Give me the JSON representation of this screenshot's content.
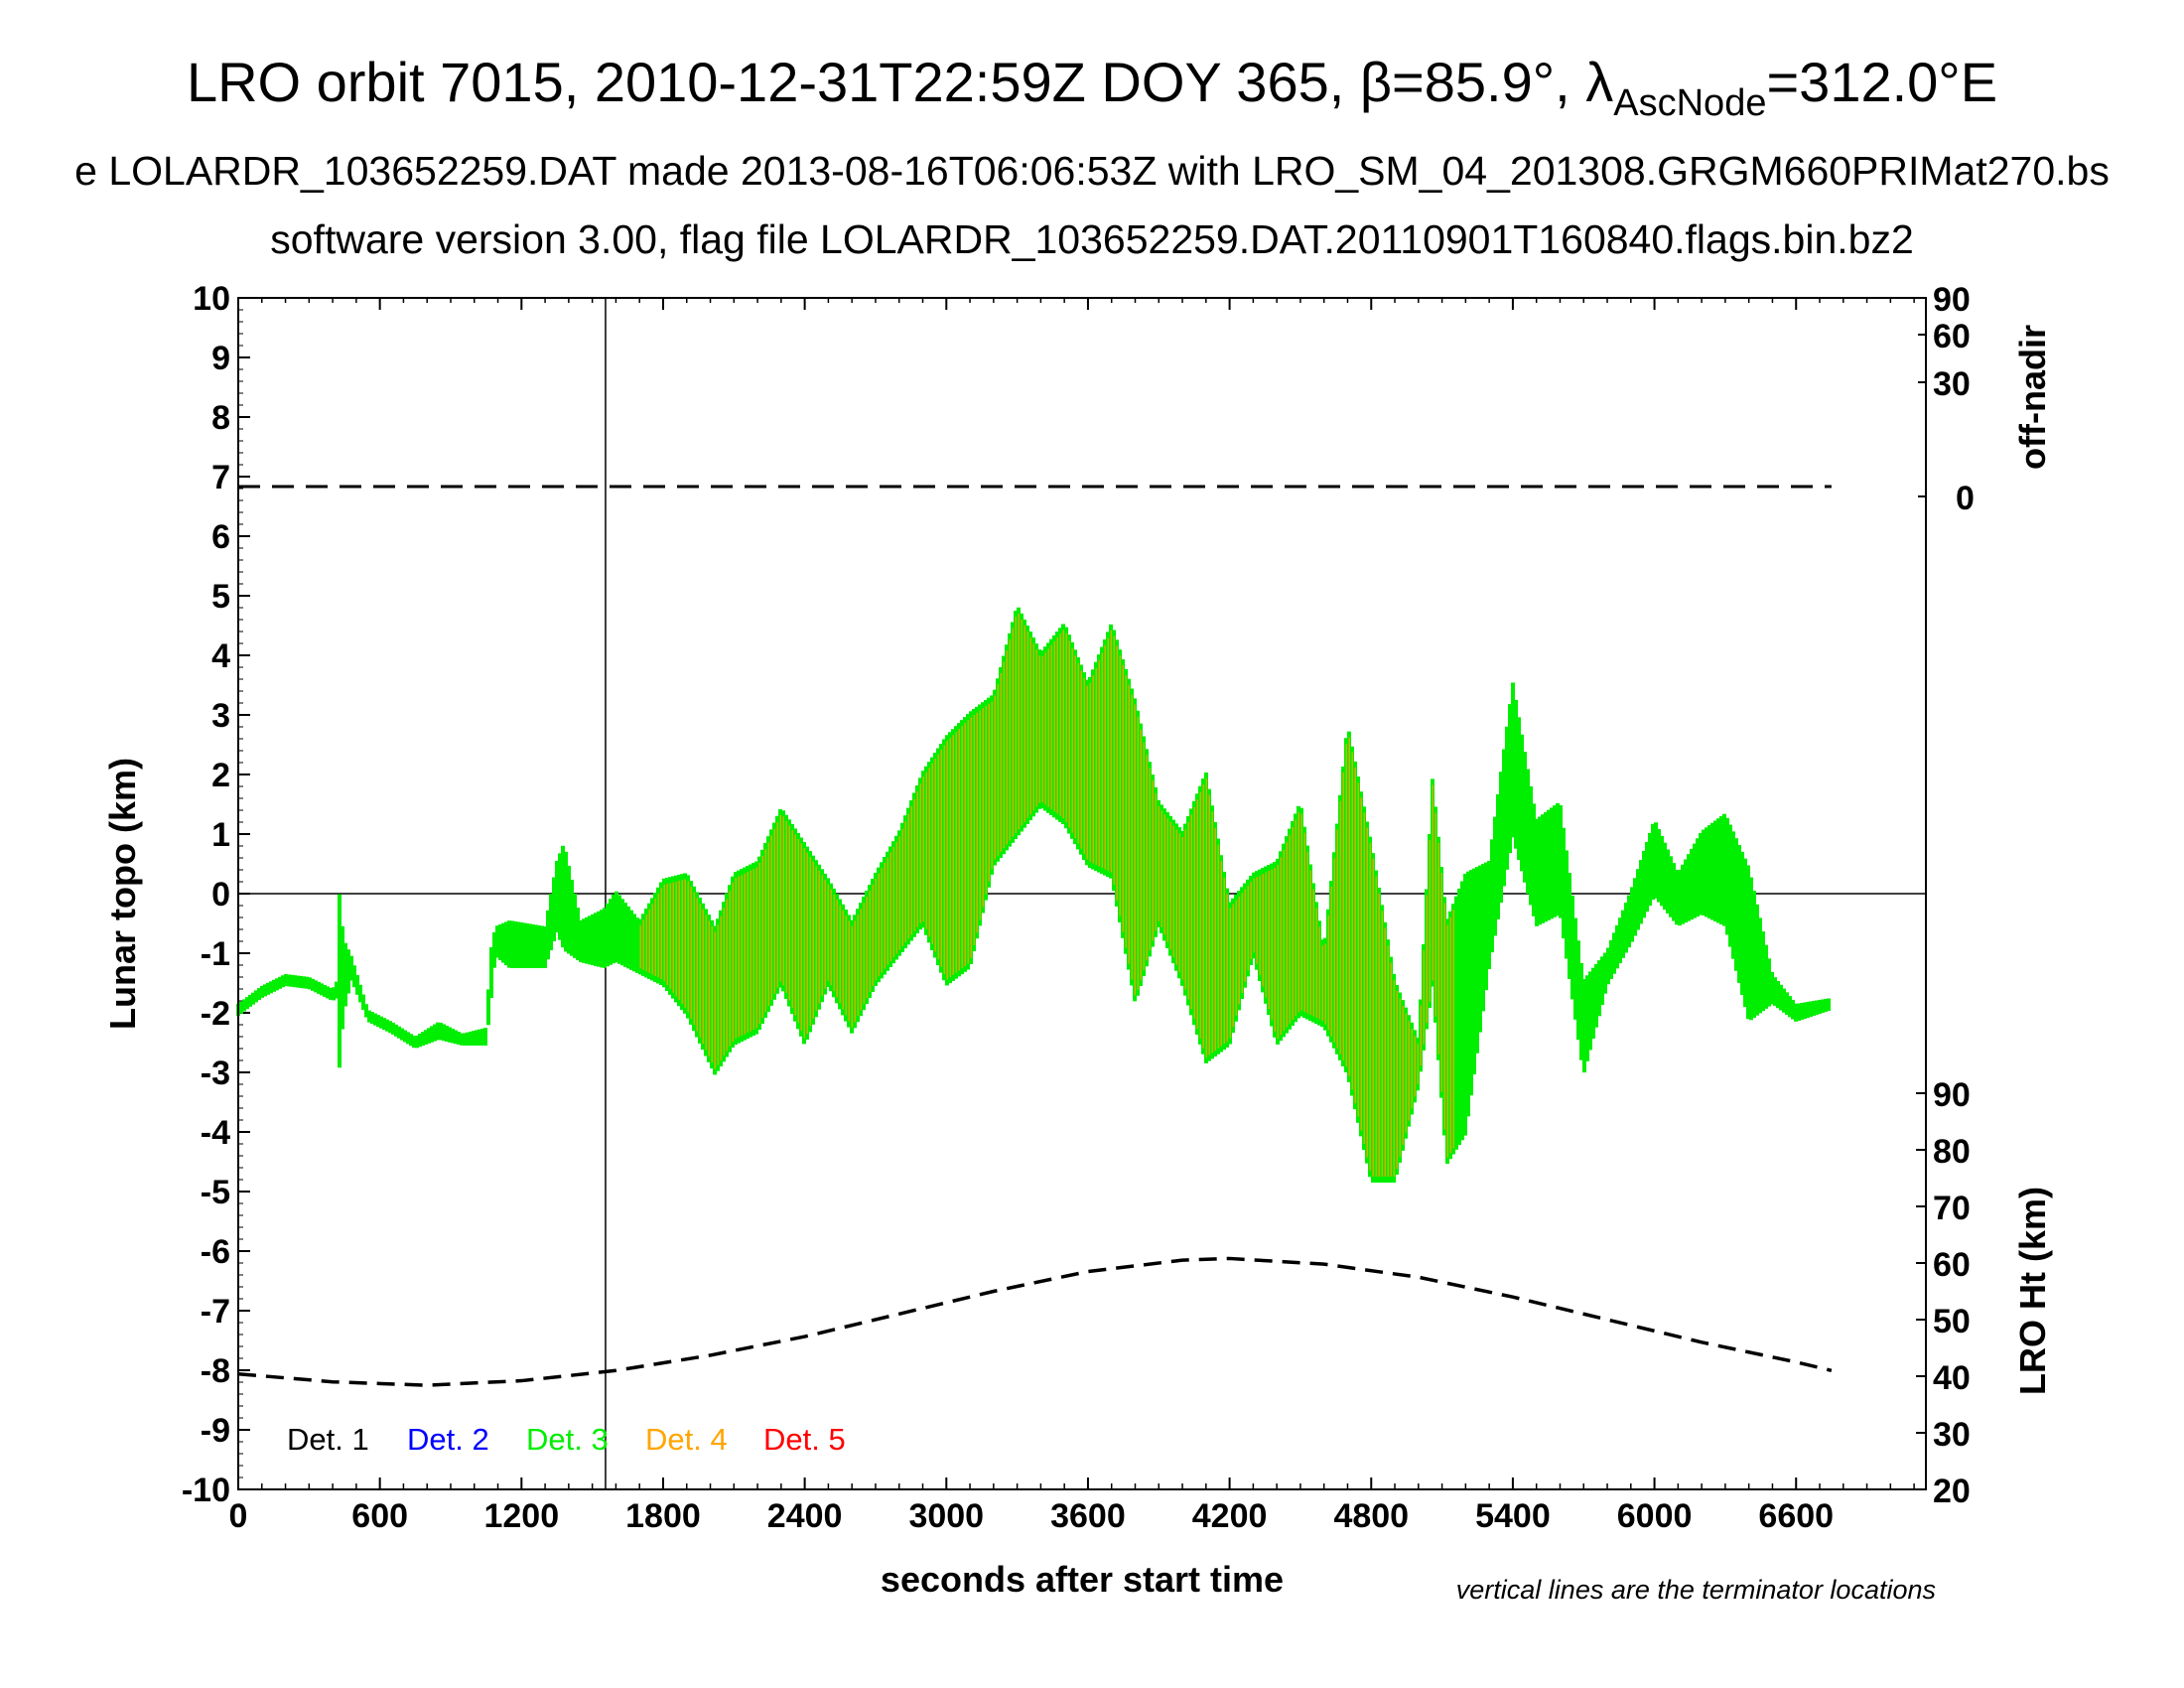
{
  "header": {
    "title_main": "LRO orbit 7015, 2010-12-31T22:59Z DOY 365, β=85.9°, λ",
    "title_sub": "AscNode",
    "title_end": "=312.0°E",
    "line2": "e LOLARDR_103652259.DAT made 2013-08-16T06:06:53Z with LRO_SM_04_201308.GRGM660PRIMat270.bs",
    "line3": "software version 3.00, flag file LOLARDR_103652259.DAT.20110901T160840.flags.bin.bz2"
  },
  "chart_data": {
    "type": "scatter",
    "xlabel": "seconds after start time",
    "ylabel": "Lunar topo (km)",
    "y2label_top": "off-nadir",
    "y2label_bottom": "LRO Ht (km)",
    "note": "vertical lines are the terminator locations",
    "xlim": [
      0,
      7150
    ],
    "ylim": [
      -10,
      10
    ],
    "x_ticks": [
      "0",
      "600",
      "1200",
      "1800",
      "2400",
      "3000",
      "3600",
      "4200",
      "4800",
      "5400",
      "6000",
      "6600"
    ],
    "y_ticks": [
      "10",
      "9",
      "8",
      "7",
      "6",
      "5",
      "4",
      "3",
      "2",
      "1",
      "0",
      "-1",
      "-2",
      "-3",
      "-4",
      "-5",
      "-6",
      "-7",
      "-8",
      "-9",
      "-10"
    ],
    "offnadir_ticks": [
      "90",
      "60",
      "30",
      "0"
    ],
    "height_ticks": [
      "90",
      "80",
      "70",
      "60",
      "50",
      "40",
      "30",
      "20"
    ],
    "height_range_km": [
      20,
      90
    ],
    "terminator_seconds": [
      1556
    ],
    "legend": [
      {
        "label": "Det. 1",
        "color": "#000000"
      },
      {
        "label": "Det. 2",
        "color": "#0000ff"
      },
      {
        "label": "Det. 3",
        "color": "#00ee00"
      },
      {
        "label": "Det. 4",
        "color": "#ffa500"
      },
      {
        "label": "Det. 5",
        "color": "#ff0000"
      }
    ],
    "topo_profile_min_max_km": [
      [
        0,
        -2.0,
        -1.9
      ],
      [
        100,
        -1.7,
        -1.6
      ],
      [
        200,
        -1.5,
        -1.4
      ],
      [
        300,
        -1.55,
        -1.45
      ],
      [
        400,
        -1.75,
        -1.65
      ],
      [
        420,
        -1.7,
        -1.5
      ],
      [
        430,
        -3.0,
        0.1
      ],
      [
        445,
        -2.0,
        -0.8
      ],
      [
        480,
        -1.4,
        -1.1
      ],
      [
        550,
        -2.1,
        -2.0
      ],
      [
        650,
        -2.3,
        -2.2
      ],
      [
        750,
        -2.55,
        -2.45
      ],
      [
        850,
        -2.4,
        -2.2
      ],
      [
        950,
        -2.5,
        -2.4
      ],
      [
        1050,
        -2.5,
        -2.3
      ],
      [
        1070,
        -1.8,
        -1.0
      ],
      [
        1090,
        -1.0,
        -0.6
      ],
      [
        1150,
        -1.2,
        -0.5
      ],
      [
        1300,
        -1.2,
        -0.6
      ],
      [
        1350,
        -0.6,
        0.5
      ],
      [
        1380,
        -0.9,
        0.8
      ],
      [
        1450,
        -1.1,
        -0.5
      ],
      [
        1550,
        -1.2,
        -0.3
      ],
      [
        1600,
        -1.1,
        0.0
      ],
      [
        1700,
        -1.3,
        -0.5
      ],
      [
        1800,
        -1.5,
        0.2
      ],
      [
        1900,
        -2.0,
        0.3
      ],
      [
        2020,
        -3.0,
        -0.6
      ],
      [
        2100,
        -2.5,
        0.3
      ],
      [
        2200,
        -2.3,
        0.5
      ],
      [
        2300,
        -1.5,
        1.4
      ],
      [
        2400,
        -2.5,
        0.8
      ],
      [
        2500,
        -1.5,
        0.2
      ],
      [
        2600,
        -2.3,
        -0.5
      ],
      [
        2700,
        -1.5,
        0.3
      ],
      [
        2800,
        -1.0,
        1.0
      ],
      [
        2900,
        -0.5,
        2.0
      ],
      [
        3000,
        -1.5,
        2.6
      ],
      [
        3100,
        -1.2,
        3.0
      ],
      [
        3200,
        0.5,
        3.3
      ],
      [
        3300,
        1.0,
        4.8
      ],
      [
        3400,
        1.5,
        4.0
      ],
      [
        3500,
        1.2,
        4.5
      ],
      [
        3600,
        0.5,
        3.5
      ],
      [
        3700,
        0.3,
        4.5
      ],
      [
        3800,
        -1.8,
        3.2
      ],
      [
        3900,
        -0.5,
        1.5
      ],
      [
        4000,
        -1.5,
        1.0
      ],
      [
        4100,
        -2.8,
        2.0
      ],
      [
        4200,
        -2.5,
        -0.2
      ],
      [
        4300,
        -1.0,
        0.3
      ],
      [
        4400,
        -2.5,
        0.5
      ],
      [
        4500,
        -2.0,
        1.5
      ],
      [
        4600,
        -2.2,
        -1.0
      ],
      [
        4700,
        -3.0,
        2.8
      ],
      [
        4800,
        -4.8,
        0.8
      ],
      [
        4900,
        -4.8,
        -1.5
      ],
      [
        5000,
        -3.2,
        -2.5
      ],
      [
        5060,
        -1.5,
        1.9
      ],
      [
        5120,
        -4.5,
        -0.5
      ],
      [
        5200,
        -4.0,
        0.3
      ],
      [
        5300,
        -1.2,
        0.5
      ],
      [
        5400,
        1.0,
        3.5
      ],
      [
        5500,
        -0.5,
        1.2
      ],
      [
        5600,
        -0.3,
        1.5
      ],
      [
        5700,
        -3.0,
        -1.5
      ],
      [
        5800,
        -1.5,
        -1.0
      ],
      [
        5900,
        -0.8,
        0.0
      ],
      [
        6000,
        0.0,
        1.2
      ],
      [
        6100,
        -0.5,
        0.3
      ],
      [
        6200,
        -0.3,
        1.0
      ],
      [
        6300,
        -0.5,
        1.3
      ],
      [
        6400,
        -2.1,
        0.4
      ],
      [
        6500,
        -1.8,
        -1.4
      ],
      [
        6600,
        -2.1,
        -1.9
      ],
      [
        6750,
        -1.9,
        -1.8
      ]
    ],
    "lro_height_km": [
      [
        0,
        40.4
      ],
      [
        400,
        39.0
      ],
      [
        800,
        38.4
      ],
      [
        1200,
        39.2
      ],
      [
        1600,
        41.0
      ],
      [
        2000,
        43.7
      ],
      [
        2400,
        47.0
      ],
      [
        2800,
        51.0
      ],
      [
        3200,
        55.0
      ],
      [
        3600,
        58.5
      ],
      [
        4000,
        60.5
      ],
      [
        4200,
        60.8
      ],
      [
        4600,
        59.8
      ],
      [
        5000,
        57.5
      ],
      [
        5400,
        54.0
      ],
      [
        5800,
        50.0
      ],
      [
        6200,
        46.0
      ],
      [
        6600,
        42.5
      ],
      [
        6750,
        41.0
      ]
    ],
    "off_nadir_deg": [
      [
        0,
        1
      ],
      [
        6750,
        1
      ]
    ]
  }
}
